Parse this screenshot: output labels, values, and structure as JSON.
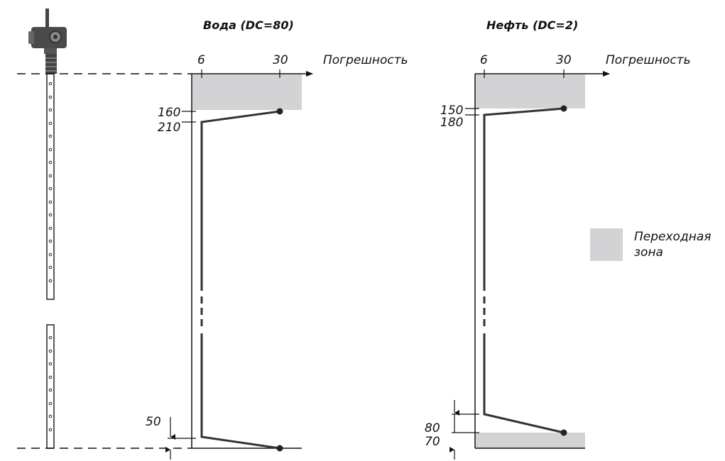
{
  "charts": [
    {
      "title": "Вода (DC=80)",
      "axis_label": "Погрешность",
      "x_ticks": [
        "6",
        "30"
      ],
      "labels": {
        "top_a": "160",
        "top_b": "210",
        "bottom": "50"
      }
    },
    {
      "title": "Нефть (DC=2)",
      "axis_label": "Погрешность",
      "x_ticks": [
        "6",
        "30"
      ],
      "labels": {
        "top_a": "150",
        "top_b": "180",
        "bottom_a": "80",
        "bottom_b": "70"
      }
    }
  ],
  "legend": {
    "line1": "Переходная",
    "line2": "зона"
  },
  "colors": {
    "zone": "#d3d3d5",
    "line": "#333333",
    "ink": "#111111"
  }
}
